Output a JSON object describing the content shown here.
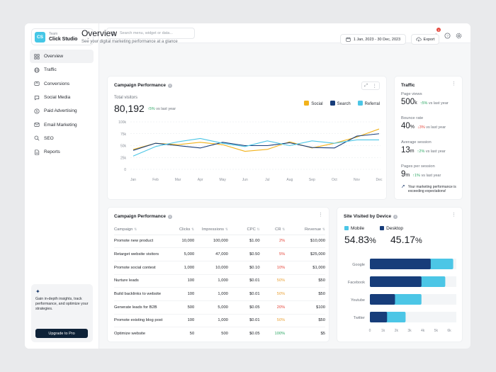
{
  "team": {
    "label": "Team",
    "name": "Click Studio",
    "initials": "CS"
  },
  "nav": [
    {
      "label": "Overview",
      "icon": "grid-icon",
      "active": true
    },
    {
      "label": "Traffic",
      "icon": "globe-icon"
    },
    {
      "label": "Conversions",
      "icon": "conversion-icon"
    },
    {
      "label": "Social Media",
      "icon": "chat-icon"
    },
    {
      "label": "Paid Advertising",
      "icon": "dollar-icon"
    },
    {
      "label": "Email Marketing",
      "icon": "mail-icon"
    },
    {
      "label": "SEO",
      "icon": "seo-icon"
    },
    {
      "label": "Reports",
      "icon": "report-icon"
    }
  ],
  "promo": {
    "text": "Gain in-depth insights, track performance, and optimize your strategies.",
    "button": "Upgrade to Pro"
  },
  "search": {
    "placeholder": "Search menu, widget or data..."
  },
  "notifications": {
    "count": "3"
  },
  "page": {
    "title": "Overview",
    "subtitle": "See your digital marketing performance at a glance"
  },
  "date_range": "1 Jan, 2023 - 30 Dec, 2023",
  "export_label": "Export",
  "campaign_chart": {
    "title": "Campaign Performance",
    "total_label": "Total visitors",
    "total_value": "80,192",
    "delta": "5%",
    "delta_text": "vs last year"
  },
  "chart_data": {
    "type": "line",
    "categories": [
      "Jan",
      "Feb",
      "Mar",
      "Apr",
      "May",
      "Jun",
      "Jul",
      "Aug",
      "Sep",
      "Oct",
      "Nov",
      "Dec"
    ],
    "ylim": [
      0,
      100
    ],
    "yticks": [
      "0",
      "25k",
      "50k",
      "75k",
      "100k"
    ],
    "series": [
      {
        "name": "Social",
        "color": "#f2b21b",
        "values": [
          42,
          55,
          52,
          57,
          52,
          38,
          42,
          58,
          45,
          55,
          68,
          85
        ]
      },
      {
        "name": "Search",
        "color": "#173d7a",
        "values": [
          40,
          55,
          50,
          45,
          57,
          50,
          50,
          56,
          46,
          45,
          70,
          75
        ]
      },
      {
        "name": "Referral",
        "color": "#4cc6e6",
        "values": [
          28,
          48,
          58,
          65,
          55,
          48,
          60,
          50,
          60,
          55,
          62,
          62
        ]
      }
    ]
  },
  "traffic": {
    "title": "Traffic",
    "items": [
      {
        "label": "Page views",
        "value": "500",
        "unit": "k",
        "delta": "5%",
        "dir": "up",
        "delta_text": "vs last year"
      },
      {
        "label": "Bounce rate",
        "value": "40",
        "unit": "%",
        "delta": "3%",
        "dir": "down",
        "delta_text": "vs last year"
      },
      {
        "label": "Average session",
        "value": "13",
        "unit": "m",
        "delta": "2%",
        "dir": "up",
        "delta_text": "vs last year"
      },
      {
        "label": "Pages per session",
        "value": "9",
        "unit": "m",
        "delta": "1%",
        "dir": "up",
        "delta_text": "vs last year"
      }
    ],
    "note": "Your marketing performance is exceeding expectations!"
  },
  "campaign_table": {
    "title": "Campaign Performance",
    "columns": [
      "Campaign",
      "Clicks",
      "Impressions",
      "CPC",
      "CR",
      "Revenue"
    ],
    "rows": [
      {
        "campaign": "Promote new product",
        "clicks": "10,000",
        "impressions": "100,000",
        "cpc": "$1.00",
        "cr": "2%",
        "cr_color": "red",
        "revenue": "$10,000"
      },
      {
        "campaign": "Retarget website visitors",
        "clicks": "5,000",
        "impressions": "47,000",
        "cpc": "$0.50",
        "cr": "5%",
        "cr_color": "red",
        "revenue": "$25,000"
      },
      {
        "campaign": "Promote social contest",
        "clicks": "1,000",
        "impressions": "10,000",
        "cpc": "$0.10",
        "cr": "10%",
        "cr_color": "red",
        "revenue": "$1,000"
      },
      {
        "campaign": "Nurture leads",
        "clicks": "100",
        "impressions": "1,000",
        "cpc": "$0.01",
        "cr": "50%",
        "cr_color": "orange",
        "revenue": "$50"
      },
      {
        "campaign": "Build backlinks to website",
        "clicks": "100",
        "impressions": "1,000",
        "cpc": "$0.01",
        "cr": "50%",
        "cr_color": "orange",
        "revenue": "$50"
      },
      {
        "campaign": "Generate leads for B2B",
        "clicks": "500",
        "impressions": "5,000",
        "cpc": "$0.05",
        "cr": "20%",
        "cr_color": "red",
        "revenue": "$100"
      },
      {
        "campaign": "Promote existing blog post",
        "clicks": "100",
        "impressions": "1,000",
        "cpc": "$0.01",
        "cr": "50%",
        "cr_color": "orange",
        "revenue": "$50"
      },
      {
        "campaign": "Optimize website",
        "clicks": "50",
        "impressions": "500",
        "cpc": "$0.05",
        "cr": "100%",
        "cr_color": "green",
        "revenue": "$5"
      }
    ]
  },
  "device": {
    "title": "Site Visited by Device",
    "mobile_label": "Mobile",
    "mobile_value": "54.83",
    "mobile_color": "#4cc6e6",
    "desktop_label": "Desktop",
    "desktop_value": "45.17",
    "desktop_color": "#173d7a",
    "pct": "%",
    "xticks": [
      "0",
      "1k",
      "2k",
      "3k",
      "4k",
      "5k",
      "6k"
    ],
    "xmax": 6,
    "bars": [
      {
        "name": "Google",
        "desktop": 4.6,
        "mobile": 1.7
      },
      {
        "name": "Facebook",
        "desktop": 3.9,
        "mobile": 1.8
      },
      {
        "name": "Youtube",
        "desktop": 1.9,
        "mobile": 2.0
      },
      {
        "name": "Twitter",
        "desktop": 1.3,
        "mobile": 1.4
      }
    ]
  }
}
